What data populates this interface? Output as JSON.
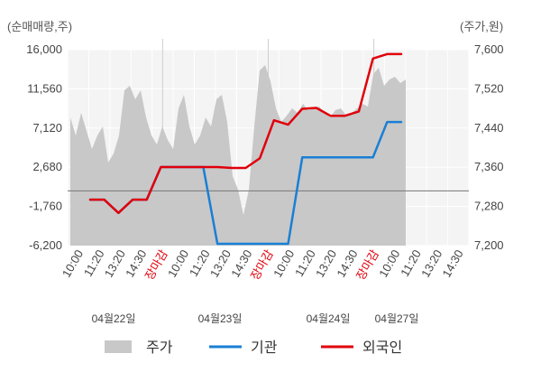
{
  "chart_data": {
    "type": "line",
    "y_left_label": "(순매매량,주)",
    "y_right_label": "(주가,원)",
    "y_left_ticks": [
      "16,000",
      "11,560",
      "7,120",
      "2,680",
      "-1,760",
      "-6,200"
    ],
    "y_right_ticks": [
      "7,600",
      "7,520",
      "7,440",
      "7,360",
      "7,280",
      "7,200"
    ],
    "y_left_range": [
      -6200,
      16000
    ],
    "y_right_range": [
      7200,
      7600
    ],
    "x_tick_labels": [
      {
        "text": "10:00",
        "red": false
      },
      {
        "text": "11:20",
        "red": false
      },
      {
        "text": "13:20",
        "red": false
      },
      {
        "text": "14:30",
        "red": false
      },
      {
        "text": "장마감",
        "red": true
      },
      {
        "text": "10:00",
        "red": false
      },
      {
        "text": "11:20",
        "red": false
      },
      {
        "text": "13:20",
        "red": false
      },
      {
        "text": "14:30",
        "red": false
      },
      {
        "text": "장마감",
        "red": true
      },
      {
        "text": "10:00",
        "red": false
      },
      {
        "text": "11:20",
        "red": false
      },
      {
        "text": "13:20",
        "red": false
      },
      {
        "text": "14:30",
        "red": false
      },
      {
        "text": "장마감",
        "red": true
      },
      {
        "text": "10:00",
        "red": false
      },
      {
        "text": "11:20",
        "red": false
      },
      {
        "text": "13:20",
        "red": false
      },
      {
        "text": "14:30",
        "red": false
      }
    ],
    "date_labels": [
      {
        "text": "04월22일",
        "slot": 0
      },
      {
        "text": "04월23일",
        "slot": 1
      },
      {
        "text": "04월24일",
        "slot": 2
      },
      {
        "text": "04월27일",
        "slot": 3
      }
    ],
    "series": [
      {
        "name": "기관",
        "color": "#1a7fd4",
        "values": [
          -1000,
          -1000,
          -2500,
          -1000,
          -1000,
          2700,
          2700,
          2700,
          2700,
          -6000,
          -6000,
          -6000,
          -6000,
          -6000,
          -6000,
          3800,
          3800,
          3800,
          3800,
          3800,
          3800,
          7800,
          7800
        ]
      },
      {
        "name": "외국인",
        "color": "#e0000b",
        "values": [
          -1000,
          -1000,
          -2500,
          -1000,
          -1000,
          2700,
          2700,
          2700,
          2700,
          2700,
          2600,
          2600,
          3700,
          8000,
          7500,
          9300,
          9400,
          8500,
          8500,
          9000,
          15000,
          15500,
          15500
        ]
      }
    ],
    "price_series": {
      "name": "주가",
      "color": "#c8c8c8"
    },
    "legend": [
      {
        "label": "주가",
        "type": "area",
        "color": "#c8c8c8"
      },
      {
        "label": "기관",
        "type": "line",
        "color": "#1a7fd4"
      },
      {
        "label": "외국인",
        "type": "line",
        "color": "#e0000b"
      }
    ],
    "grid": true
  }
}
